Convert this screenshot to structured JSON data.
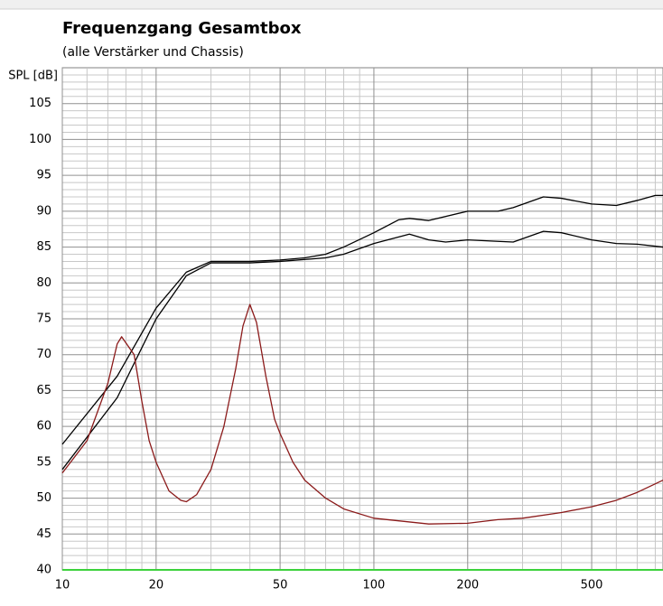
{
  "chart_data": {
    "type": "line",
    "title": "Frequenzgang Gesamtbox",
    "subtitle": "(alle Verstärker und Chassis)",
    "y_label": "SPL [dB]",
    "x_scale": "log",
    "xlim": [
      10,
      847
    ],
    "ylim": [
      40,
      110
    ],
    "xticks": [
      10,
      20,
      50,
      100,
      200,
      500
    ],
    "yticks": [
      40,
      45,
      50,
      55,
      60,
      65,
      70,
      75,
      80,
      85,
      90,
      95,
      100,
      105
    ],
    "x_minor_ticks": [
      12,
      14,
      16,
      18,
      30,
      40,
      60,
      70,
      80,
      90,
      300,
      400,
      600,
      700,
      800
    ],
    "y_minor_ticks": [
      41,
      42,
      43,
      44,
      46,
      47,
      48,
      49,
      51,
      52,
      53,
      54,
      56,
      57,
      58,
      59,
      61,
      62,
      63,
      64,
      66,
      67,
      68,
      69,
      71,
      72,
      73,
      74,
      76,
      77,
      78,
      79,
      81,
      82,
      83,
      84,
      86,
      87,
      88,
      89,
      91,
      92,
      93,
      94,
      96,
      97,
      98,
      99,
      101,
      102,
      103,
      104,
      106,
      107,
      108,
      109
    ],
    "grid": true,
    "series": [
      {
        "color": "#000000",
        "x": [
          10,
          15,
          20,
          25,
          30,
          40,
          50,
          60,
          70,
          80,
          100,
          120,
          130,
          150,
          200,
          250,
          280,
          350,
          400,
          500,
          600,
          700,
          800,
          847
        ],
        "values": [
          57.5,
          67,
          76.5,
          81.5,
          83,
          83,
          83.2,
          83.5,
          84,
          85,
          87,
          88.8,
          89,
          88.7,
          90,
          90,
          90.5,
          92,
          91.8,
          91,
          90.8,
          91.5,
          92.2,
          92.2
        ]
      },
      {
        "color": "#000000",
        "x": [
          10,
          15,
          20,
          25,
          30,
          40,
          50,
          70,
          80,
          100,
          130,
          150,
          170,
          200,
          250,
          280,
          350,
          400,
          500,
          600,
          700,
          847
        ],
        "values": [
          54,
          64,
          75,
          81,
          82.8,
          82.8,
          83,
          83.5,
          84,
          85.5,
          86.8,
          86,
          85.7,
          86,
          85.8,
          85.7,
          87.2,
          87,
          86,
          85.5,
          85.4,
          85
        ]
      },
      {
        "color": "#8b1a1a",
        "x": [
          10,
          12,
          14,
          15,
          15.5,
          17,
          18,
          19,
          20,
          22,
          24,
          25,
          27,
          30,
          33,
          36,
          38,
          40,
          42,
          45,
          48,
          50,
          55,
          60,
          70,
          80,
          100,
          150,
          200,
          250,
          300,
          400,
          500,
          600,
          700,
          847
        ],
        "values": [
          53.5,
          58,
          66,
          71.5,
          72.5,
          70,
          63.5,
          58,
          55,
          51,
          49.7,
          49.5,
          50.5,
          54,
          60,
          68,
          74,
          77,
          74.5,
          67,
          61,
          59,
          55,
          52.5,
          50,
          48.5,
          47.2,
          46.4,
          46.5,
          47,
          47.2,
          48,
          48.8,
          49.7,
          50.8,
          52.5
        ]
      }
    ]
  }
}
